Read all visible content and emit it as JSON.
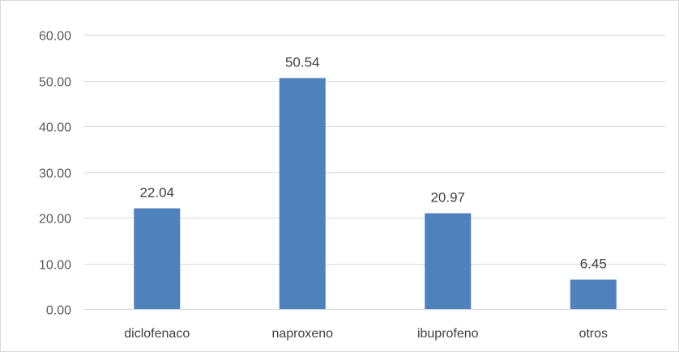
{
  "chart_data": {
    "type": "bar",
    "categories": [
      "diclofenaco",
      "naproxeno",
      "ibuprofeno",
      "otros"
    ],
    "values": [
      22.04,
      50.54,
      20.97,
      6.45
    ],
    "data_labels": [
      "22.04",
      "50.54",
      "20.97",
      "6.45"
    ],
    "y_ticks": [
      0,
      10,
      20,
      30,
      40,
      50,
      60
    ],
    "y_tick_labels": [
      "0.00",
      "10.00",
      "20.00",
      "30.00",
      "40.00",
      "50.00",
      "60.00"
    ],
    "ylim": [
      0,
      60
    ],
    "grid": true,
    "legend": "none",
    "bar_color": "#4f81bd",
    "grid_color": "#d9d9d9"
  }
}
